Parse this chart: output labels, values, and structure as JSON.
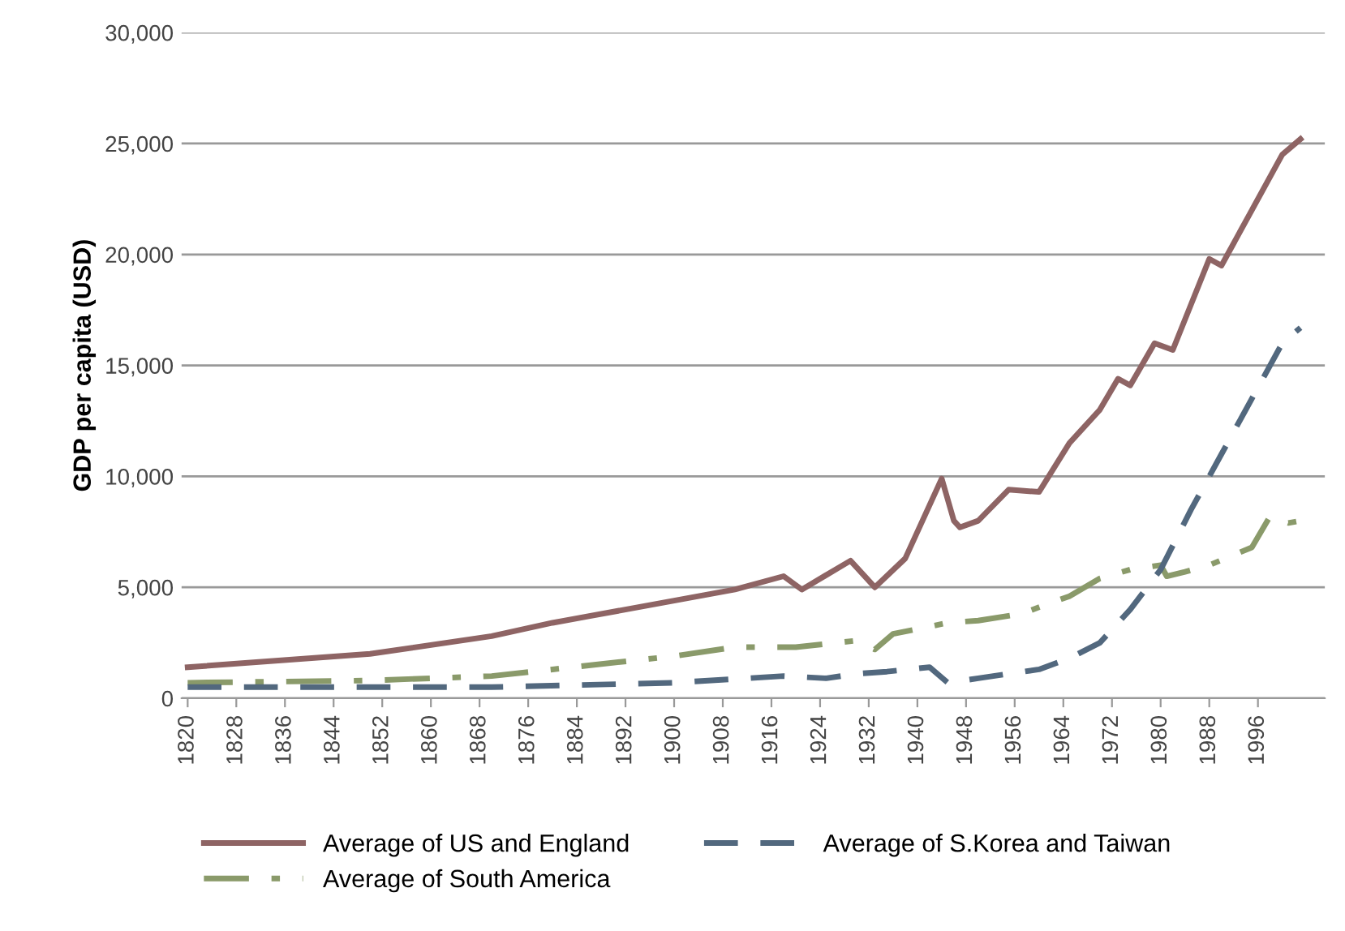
{
  "chart_data": {
    "type": "line",
    "ylabel": "GDP per capita (USD)",
    "xlim": [
      1819,
      2007
    ],
    "xticks": [
      1820,
      1828,
      1836,
      1844,
      1852,
      1860,
      1868,
      1876,
      1884,
      1892,
      1900,
      1908,
      1916,
      1924,
      1932,
      1940,
      1948,
      1956,
      1964,
      1972,
      1980,
      1988,
      1996
    ],
    "ylim": [
      0,
      30000
    ],
    "yticks": [
      {
        "value": 0,
        "label": "0"
      },
      {
        "value": 5000,
        "label": "5,000"
      },
      {
        "value": 10000,
        "label": "10,000"
      },
      {
        "value": 15000,
        "label": "15,000"
      },
      {
        "value": 20000,
        "label": "20,000"
      },
      {
        "value": 25000,
        "label": "25,000"
      },
      {
        "value": 30000,
        "label": "30,000"
      }
    ],
    "grid": "y",
    "legend": "bottom",
    "marker": "none",
    "series": [
      {
        "name": "Average of US and England",
        "color": "#8e6464",
        "line_style": "solid",
        "x": [
          1820,
          1850,
          1870,
          1880,
          1900,
          1910,
          1918,
          1921,
          1929,
          1933,
          1938,
          1944,
          1946,
          1947,
          1950,
          1955,
          1960,
          1965,
          1970,
          1973,
          1975,
          1979,
          1982,
          1988,
          1990,
          1995,
          2000,
          2003
        ],
        "values": [
          1400,
          2000,
          2800,
          3400,
          4400,
          4900,
          5500,
          4900,
          6200,
          5000,
          6300,
          9900,
          8000,
          7700,
          8000,
          9400,
          9300,
          11500,
          13000,
          14400,
          14100,
          16000,
          15700,
          19800,
          19500,
          22000,
          24500,
          25200
        ]
      },
      {
        "name": "Average of S.Korea and Taiwan",
        "color": "#52687e",
        "line_style": "dashed",
        "x": [
          1820,
          1870,
          1900,
          1918,
          1925,
          1930,
          1935,
          1942,
          1945,
          1950,
          1960,
          1965,
          1970,
          1975,
          1980,
          1985,
          1990,
          1995,
          2000,
          2003
        ],
        "values": [
          500,
          500,
          700,
          1000,
          900,
          1100,
          1200,
          1400,
          700,
          900,
          1300,
          1800,
          2500,
          4000,
          5800,
          8500,
          11000,
          13500,
          16000,
          16700
        ]
      },
      {
        "name": "Average of South America",
        "color": "#8a9a6a",
        "line_style": "dashdot",
        "x": [
          1820,
          1850,
          1870,
          1880,
          1900,
          1910,
          1920,
          1930,
          1933,
          1936,
          1945,
          1950,
          1957,
          1965,
          1970,
          1975,
          1980,
          1981,
          1984,
          1988,
          1995,
          1998,
          2001,
          2003
        ],
        "values": [
          700,
          800,
          1000,
          1300,
          1900,
          2300,
          2300,
          2600,
          2200,
          2900,
          3400,
          3500,
          3800,
          4600,
          5400,
          5800,
          6000,
          5500,
          5700,
          6000,
          6800,
          8200,
          7900,
          8000
        ]
      }
    ]
  }
}
